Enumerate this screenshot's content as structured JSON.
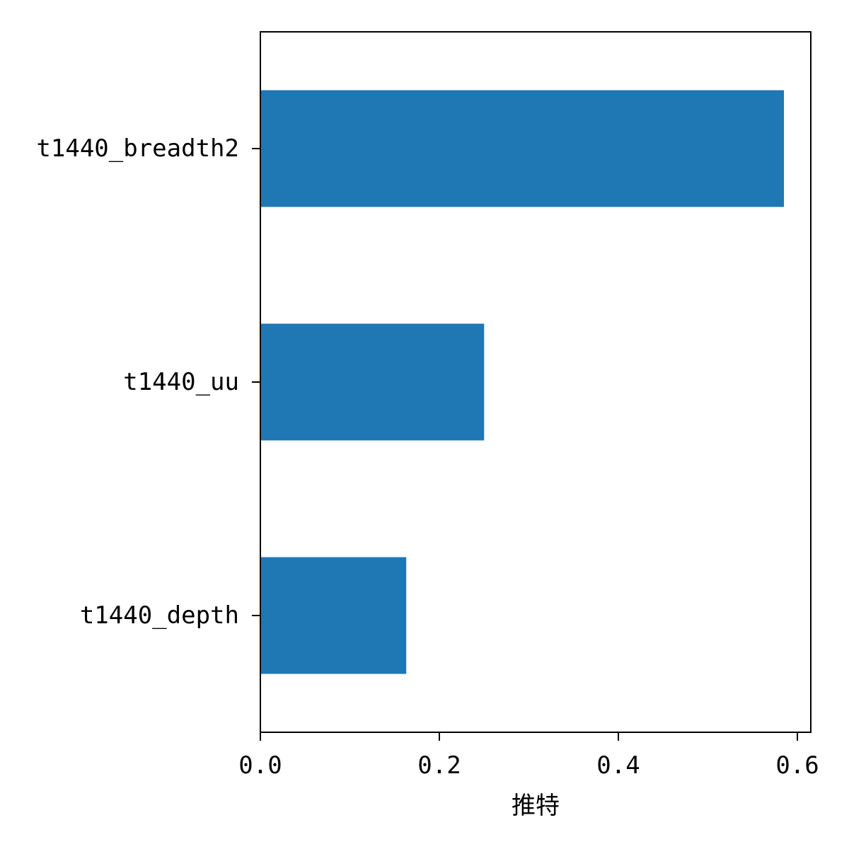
{
  "chart_data": {
    "type": "bar",
    "orientation": "horizontal",
    "categories": [
      "t1440_breadth2",
      "t1440_uu",
      "t1440_depth"
    ],
    "values": [
      0.585,
      0.25,
      0.163
    ],
    "xlabel": "推特",
    "ylabel": "",
    "xlim": [
      0,
      0.615
    ],
    "xticks": [
      0.0,
      0.2,
      0.4,
      0.6
    ],
    "xtick_labels": [
      "0.0",
      "0.2",
      "0.4",
      "0.6"
    ],
    "grid": false,
    "legend": "none",
    "bar_color": "#1f77b4"
  }
}
